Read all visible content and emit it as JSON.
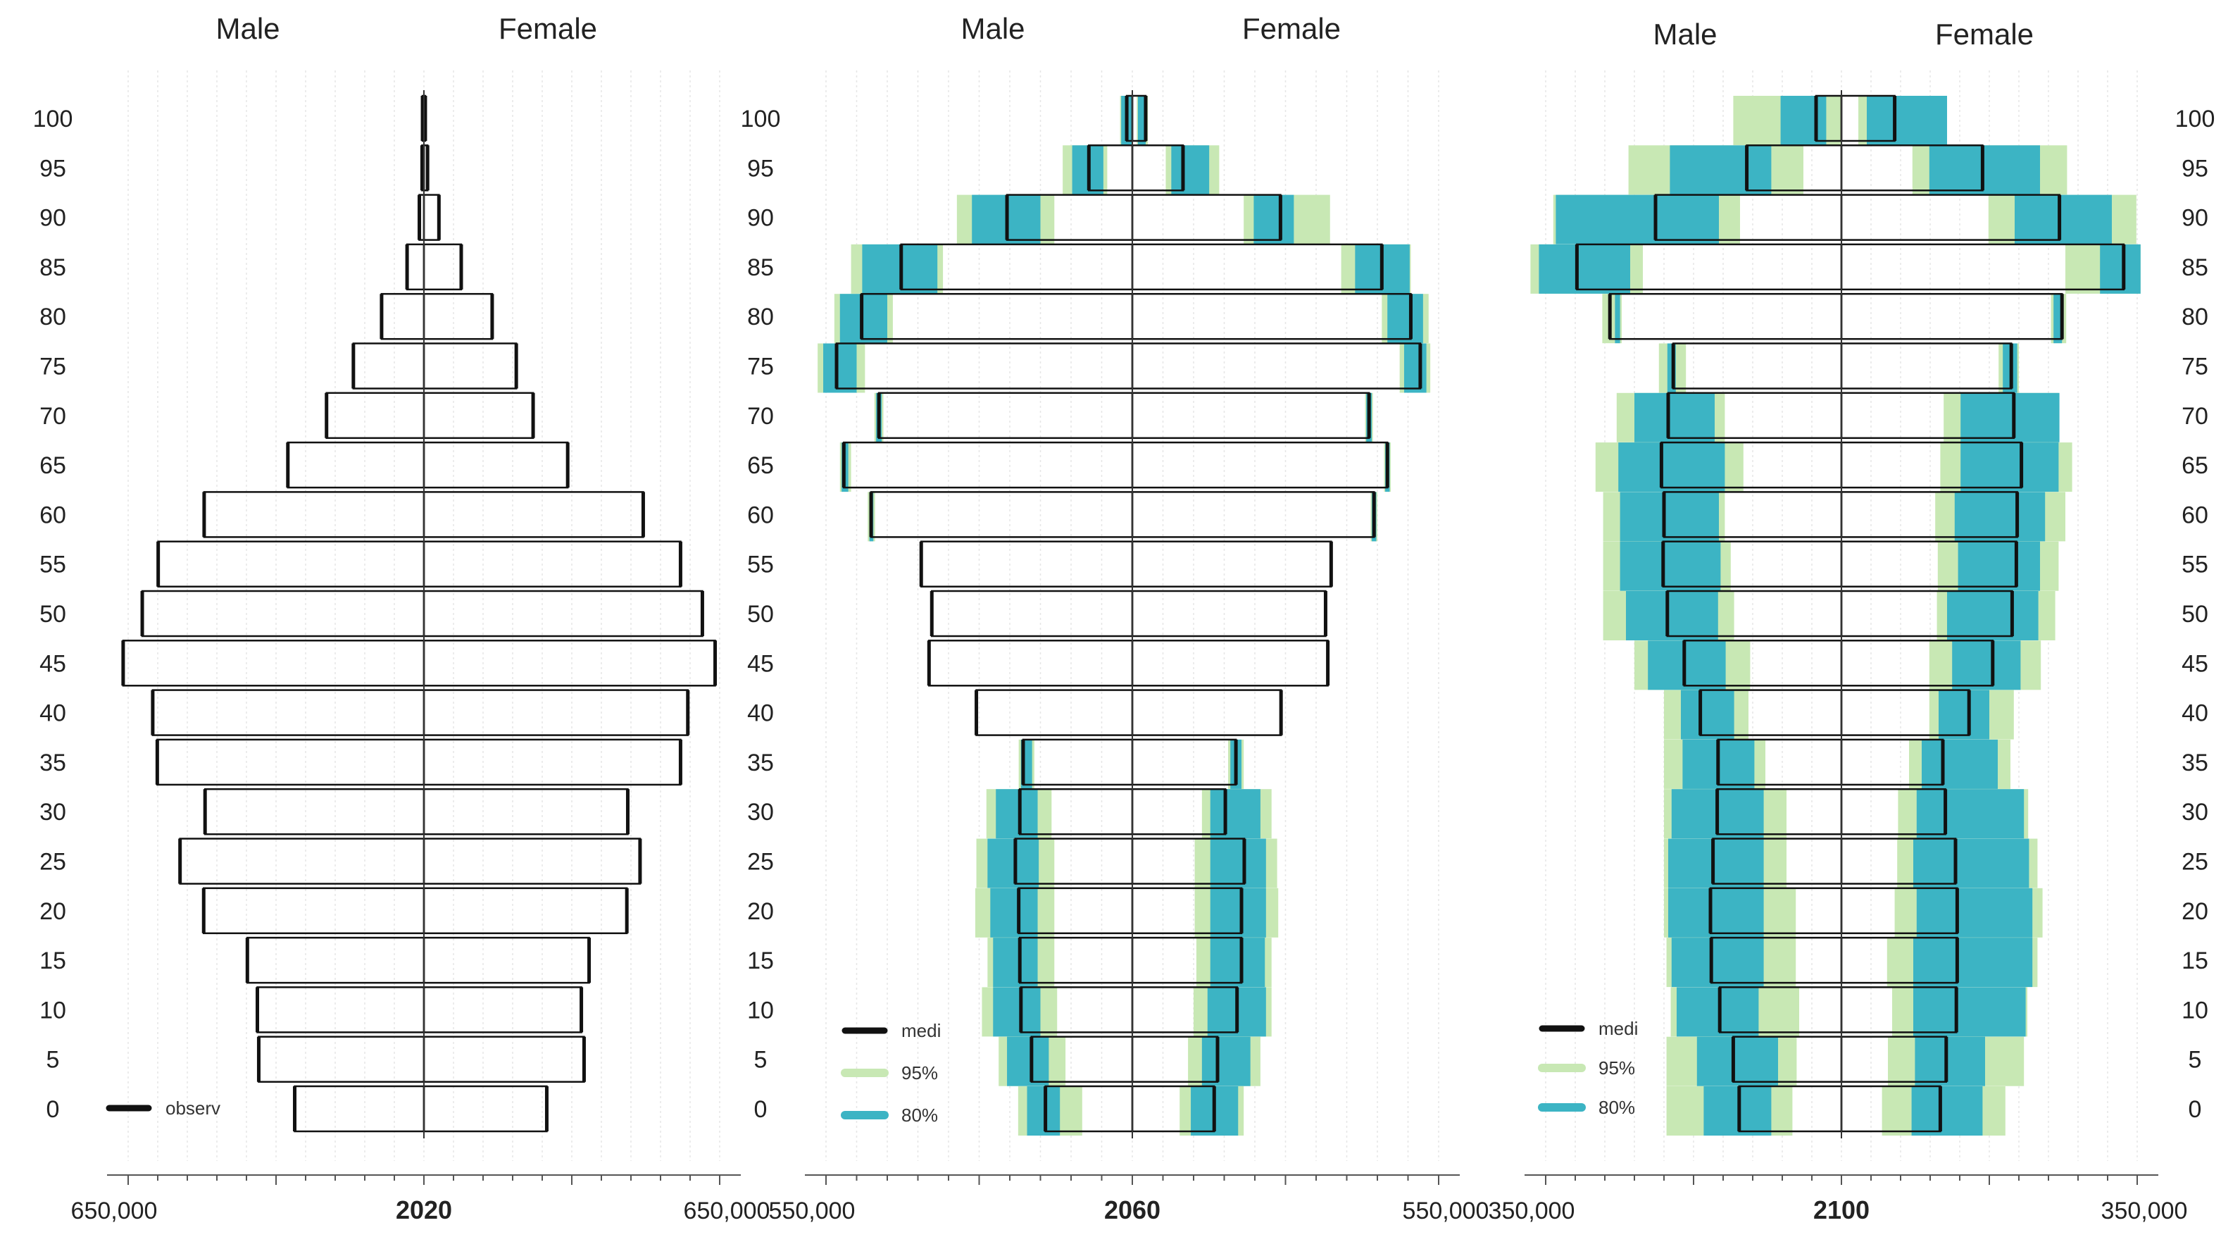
{
  "colors": {
    "pi95": "#c8e8b4",
    "pi80": "#3cb4c4",
    "median": "#111111",
    "grid": "#e6e6e6",
    "axis": "#555555"
  },
  "chart_data": [
    {
      "type": "bar",
      "subtype": "population-pyramid",
      "year": "2020",
      "male_label": "Male",
      "female_label": "Female",
      "age_axis_side": "left",
      "x_tick_left": "650,000",
      "x_tick_right": "650,000",
      "xlim_male": 650000,
      "xlim_female": 650000,
      "legend": [
        {
          "key": "median",
          "label": "observ"
        }
      ],
      "ages": [
        "0",
        "5",
        "10",
        "15",
        "20",
        "25",
        "30",
        "35",
        "40",
        "45",
        "50",
        "55",
        "60",
        "65",
        "70",
        "75",
        "80",
        "85",
        "90",
        "95",
        "100"
      ],
      "male": {
        "median": [
          284000,
          363000,
          366000,
          388000,
          484000,
          536000,
          481000,
          586000,
          596000,
          661000,
          619000,
          584000,
          483000,
          299000,
          214000,
          155000,
          93000,
          37000,
          10000,
          4000,
          3000
        ]
      },
      "female": {
        "median": [
          270000,
          352000,
          346000,
          363000,
          446000,
          475000,
          448000,
          564000,
          580000,
          640000,
          612000,
          564000,
          482000,
          316000,
          240000,
          203000,
          150000,
          82000,
          33000,
          8000,
          3000
        ]
      }
    },
    {
      "type": "bar",
      "subtype": "population-pyramid",
      "year": "2060",
      "male_label": "Male",
      "female_label": "Female",
      "age_axis_side": "left",
      "x_tick_left": "550,000",
      "x_tick_right": "550,000",
      "xlim_male": 550000,
      "xlim_female": 550000,
      "legend": [
        {
          "key": "median",
          "label": "medi"
        },
        {
          "key": "pi95",
          "label": "95%"
        },
        {
          "key": "pi80",
          "label": "80%"
        }
      ],
      "ages": [
        "0",
        "5",
        "10",
        "15",
        "20",
        "25",
        "30",
        "35",
        "40",
        "45",
        "50",
        "55",
        "60",
        "65",
        "70",
        "75",
        "80",
        "85",
        "90",
        "95",
        "100"
      ],
      "male": {
        "median": [
          156000,
          181000,
          200000,
          202000,
          204000,
          210000,
          202000,
          196000,
          280000,
          365000,
          360000,
          379000,
          469000,
          518000,
          455000,
          531000,
          486000,
          415000,
          225000,
          78000,
          10000
        ],
        "pi80": [
          [
            130000,
            189000
          ],
          [
            150000,
            225000
          ],
          [
            165000,
            250000
          ],
          [
            170000,
            250000
          ],
          [
            170000,
            255000
          ],
          [
            168000,
            260000
          ],
          [
            170000,
            245000
          ],
          [
            180000,
            200000
          ],
          [
            280000,
            280000
          ],
          [
            365000,
            365000
          ],
          [
            360000,
            360000
          ],
          [
            379000,
            379000
          ],
          [
            465000,
            472000
          ],
          [
            510000,
            522000
          ],
          [
            450000,
            460000
          ],
          [
            495000,
            555000
          ],
          [
            440000,
            525000
          ],
          [
            350000,
            485000
          ],
          [
            165000,
            288000
          ],
          [
            52000,
            108000
          ],
          [
            0,
            20000
          ]
        ],
        "pi95": [
          [
            90000,
            205000
          ],
          [
            120000,
            240000
          ],
          [
            135000,
            270000
          ],
          [
            140000,
            260000
          ],
          [
            140000,
            282000
          ],
          [
            140000,
            280000
          ],
          [
            145000,
            262000
          ],
          [
            176000,
            204000
          ],
          [
            280000,
            280000
          ],
          [
            365000,
            365000
          ],
          [
            360000,
            360000
          ],
          [
            379000,
            379000
          ],
          [
            462000,
            475000
          ],
          [
            505000,
            525000
          ],
          [
            447000,
            463000
          ],
          [
            480000,
            565000
          ],
          [
            430000,
            535000
          ],
          [
            340000,
            505000
          ],
          [
            140000,
            315000
          ],
          [
            45000,
            125000
          ],
          [
            0,
            22000
          ]
        ]
      },
      "female": {
        "median": [
          147000,
          153000,
          188000,
          196000,
          196000,
          201000,
          167000,
          186000,
          267000,
          351000,
          347000,
          357000,
          434000,
          458000,
          425000,
          517000,
          500000,
          448000,
          266000,
          91000,
          24000
        ],
        "pi80": [
          [
            105000,
            190000
          ],
          [
            125000,
            212000
          ],
          [
            135000,
            240000
          ],
          [
            140000,
            238000
          ],
          [
            140000,
            240000
          ],
          [
            140000,
            240000
          ],
          [
            140000,
            230000
          ],
          [
            176000,
            196000
          ],
          [
            267000,
            267000
          ],
          [
            351000,
            351000
          ],
          [
            347000,
            347000
          ],
          [
            357000,
            357000
          ],
          [
            430000,
            438000
          ],
          [
            454000,
            462000
          ],
          [
            420000,
            430000
          ],
          [
            488000,
            528000
          ],
          [
            458000,
            522000
          ],
          [
            400000,
            498000
          ],
          [
            218000,
            290000
          ],
          [
            70000,
            138000
          ],
          [
            10000,
            24000
          ]
        ],
        "pi95": [
          [
            85000,
            200000
          ],
          [
            100000,
            230000
          ],
          [
            110000,
            250000
          ],
          [
            115000,
            250000
          ],
          [
            112000,
            262000
          ],
          [
            112000,
            260000
          ],
          [
            125000,
            250000
          ],
          [
            172000,
            200000
          ],
          [
            267000,
            267000
          ],
          [
            351000,
            351000
          ],
          [
            347000,
            347000
          ],
          [
            357000,
            357000
          ],
          [
            428000,
            440000
          ],
          [
            452000,
            464000
          ],
          [
            418000,
            432000
          ],
          [
            480000,
            535000
          ],
          [
            448000,
            532000
          ],
          [
            375000,
            500000
          ],
          [
            200000,
            355000
          ],
          [
            60000,
            156000
          ],
          [
            8000,
            28000
          ]
        ]
      }
    },
    {
      "type": "bar",
      "subtype": "population-pyramid",
      "year": "2100",
      "male_label": "Male",
      "female_label": "Female",
      "age_axis_side": "right",
      "x_tick_left": "350,000",
      "x_tick_right": "350,000",
      "xlim_male": 350000,
      "xlim_female": 350000,
      "legend": [
        {
          "key": "median",
          "label": "medi"
        },
        {
          "key": "pi95",
          "label": "95%"
        },
        {
          "key": "pi80",
          "label": "80%"
        }
      ],
      "ages": [
        "0",
        "5",
        "10",
        "15",
        "20",
        "25",
        "30",
        "35",
        "40",
        "45",
        "50",
        "55",
        "60",
        "65",
        "70",
        "75",
        "80",
        "85",
        "90",
        "95",
        "100"
      ],
      "male": {
        "median": [
          121000,
          128000,
          144000,
          154000,
          155000,
          152000,
          147000,
          146000,
          167000,
          186000,
          206000,
          211000,
          210000,
          213000,
          205000,
          199000,
          274000,
          313000,
          220000,
          112000,
          30000
        ],
        "pi80": [
          [
            83000,
            163000
          ],
          [
            75000,
            171000
          ],
          [
            98000,
            195000
          ],
          [
            92000,
            201000
          ],
          [
            92000,
            205000
          ],
          [
            92000,
            205000
          ],
          [
            92000,
            201000
          ],
          [
            103000,
            188000
          ],
          [
            127000,
            190000
          ],
          [
            137000,
            229000
          ],
          [
            146000,
            255000
          ],
          [
            143000,
            262000
          ],
          [
            145000,
            262000
          ],
          [
            138000,
            264000
          ],
          [
            150000,
            245000
          ],
          [
            196000,
            206000
          ],
          [
            262000,
            268000
          ],
          [
            250000,
            358000
          ],
          [
            145000,
            338000
          ],
          [
            83000,
            203000
          ],
          [
            18000,
            72000
          ]
        ],
        "pi95": [
          [
            58000,
            207000
          ],
          [
            53000,
            207000
          ],
          [
            50000,
            202000
          ],
          [
            54000,
            207000
          ],
          [
            54000,
            210000
          ],
          [
            65000,
            210000
          ],
          [
            65000,
            210000
          ],
          [
            90000,
            210000
          ],
          [
            110000,
            210000
          ],
          [
            108000,
            245000
          ],
          [
            127000,
            282000
          ],
          [
            131000,
            282000
          ],
          [
            138000,
            282000
          ],
          [
            116000,
            291000
          ],
          [
            138000,
            266000
          ],
          [
            184000,
            216000
          ],
          [
            260000,
            283000
          ],
          [
            235000,
            368000
          ],
          [
            120000,
            341000
          ],
          [
            45000,
            252000
          ],
          [
            0,
            128000
          ]
        ]
      },
      "female": {
        "median": [
          117000,
          124000,
          136000,
          137000,
          137000,
          135000,
          123000,
          120000,
          151000,
          179000,
          202000,
          207000,
          208000,
          213000,
          204000,
          201000,
          261000,
          334000,
          258000,
          167000,
          63000
        ],
        "pi80": [
          [
            83000,
            167000
          ],
          [
            87000,
            170000
          ],
          [
            85000,
            218000
          ],
          [
            85000,
            226000
          ],
          [
            89000,
            226000
          ],
          [
            85000,
            222000
          ],
          [
            89000,
            216000
          ],
          [
            95000,
            185000
          ],
          [
            115000,
            175000
          ],
          [
            131000,
            212000
          ],
          [
            125000,
            233000
          ],
          [
            138000,
            235000
          ],
          [
            134000,
            241000
          ],
          [
            141000,
            257000
          ],
          [
            141000,
            258000
          ],
          [
            191000,
            208000
          ],
          [
            251000,
            261000
          ],
          [
            306000,
            354000
          ],
          [
            205000,
            320000
          ],
          [
            104000,
            235000
          ],
          [
            30000,
            125000
          ]
        ],
        "pi95": [
          [
            48000,
            194000
          ],
          [
            55000,
            216000
          ],
          [
            60000,
            220000
          ],
          [
            54000,
            232000
          ],
          [
            63000,
            238000
          ],
          [
            66000,
            232000
          ],
          [
            67000,
            221000
          ],
          [
            80000,
            200000
          ],
          [
            104000,
            204000
          ],
          [
            104000,
            236000
          ],
          [
            113000,
            253000
          ],
          [
            114000,
            257000
          ],
          [
            111000,
            265000
          ],
          [
            117000,
            273000
          ],
          [
            121000,
            257000
          ],
          [
            186000,
            210000
          ],
          [
            248000,
            266000
          ],
          [
            265000,
            354000
          ],
          [
            174000,
            349000
          ],
          [
            84000,
            267000
          ],
          [
            20000,
            121000
          ]
        ]
      }
    }
  ]
}
